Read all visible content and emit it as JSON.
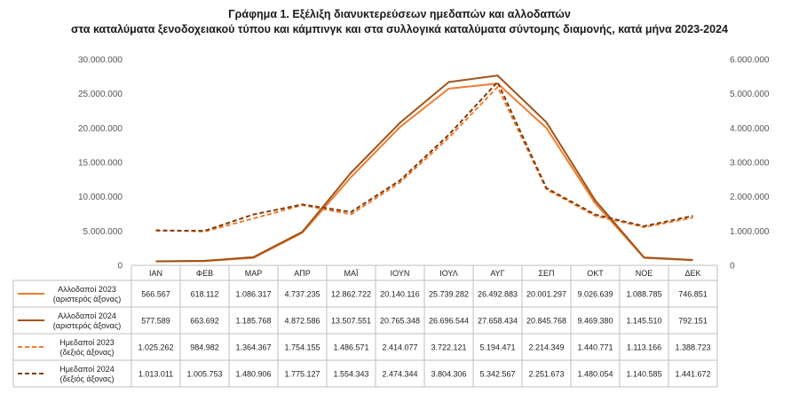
{
  "chart_data": {
    "type": "line",
    "title": "Γράφημα 1. Εξέλιξη διανυκτερεύσεων ημεδαπών και αλλοδαπών",
    "subtitle": "στα καταλύματα ξενοδοχειακού τύπου και κάμπινγκ και στα συλλογικά καταλύματα σύντομης διαμονής, κατά μήνα 2023-2024",
    "categories": [
      "ΙΑΝ",
      "ΦΕΒ",
      "ΜΑΡ",
      "ΑΠΡ",
      "ΜΑΪ",
      "ΙΟΥΝ",
      "ΙΟΥΛ",
      "ΑΥΓ",
      "ΣΕΠ",
      "ΟΚΤ",
      "ΝΟΕ",
      "ΔΕΚ"
    ],
    "y_left": {
      "lim": [
        0,
        30000000
      ],
      "ticks": [
        "0",
        "5.000.000",
        "10.000.000",
        "15.000.000",
        "20.000.000",
        "25.000.000",
        "30.000.000"
      ]
    },
    "y_right": {
      "lim": [
        0,
        6000000
      ],
      "ticks": [
        "0",
        "1.000.000",
        "2.000.000",
        "3.000.000",
        "4.000.000",
        "5.000.000",
        "6.000.000"
      ]
    },
    "grid": false,
    "legend": "table-left",
    "series": [
      {
        "name": "Αλλοδαποί 2023",
        "axis_note": "(αριστερός άξονας)",
        "axis": "left",
        "style": "solid",
        "color": "#ED7D31",
        "values": [
          566567,
          618112,
          1086317,
          4737235,
          12862722,
          20140116,
          25739282,
          26492883,
          20001297,
          9026639,
          1088785,
          746851
        ],
        "labels": [
          "566.567",
          "618.112",
          "1.086.317",
          "4.737.235",
          "12.862.722",
          "20.140.116",
          "25.739.282",
          "26.492.883",
          "20.001.297",
          "9.026.639",
          "1.088.785",
          "746.851"
        ]
      },
      {
        "name": "Αλλοδαποί 2024",
        "axis_note": "(αριστερός άξονας)",
        "axis": "left",
        "style": "solid",
        "color": "#A0541A",
        "values": [
          577589,
          663692,
          1185768,
          4872586,
          13507551,
          20765348,
          26696544,
          27658434,
          20845768,
          9469380,
          1145510,
          792151
        ],
        "labels": [
          "577.589",
          "663.692",
          "1.185.768",
          "4.872.586",
          "13.507.551",
          "20.765.348",
          "26.696.544",
          "27.658.434",
          "20.845.768",
          "9.469.380",
          "1.145.510",
          "792.151"
        ]
      },
      {
        "name": "Ημεδαποί 2023",
        "axis_note": "(δεξιός άξονας)",
        "axis": "right",
        "style": "dashed",
        "color": "#ED7D31",
        "values": [
          1025262,
          984982,
          1364367,
          1754155,
          1486571,
          2414077,
          3722121,
          5194471,
          2214349,
          1440771,
          1113166,
          1388723
        ],
        "labels": [
          "1.025.262",
          "984.982",
          "1.364.367",
          "1.754.155",
          "1.486.571",
          "2.414.077",
          "3.722.121",
          "5.194.471",
          "2.214.349",
          "1.440.771",
          "1.113.166",
          "1.388.723"
        ]
      },
      {
        "name": "Ημεδαποί 2024",
        "axis_note": "(δεξιός άξονας)",
        "axis": "right",
        "style": "dashed",
        "color": "#843C0C",
        "values": [
          1013011,
          1005753,
          1480906,
          1775127,
          1554343,
          2474344,
          3804306,
          5342567,
          2251673,
          1480054,
          1140585,
          1441672
        ],
        "labels": [
          "1.013.011",
          "1.005.753",
          "1.480.906",
          "1.775.127",
          "1.554.343",
          "2.474.344",
          "3.804.306",
          "5.342.567",
          "2.251.673",
          "1.480.054",
          "1.140.585",
          "1.441.672"
        ]
      }
    ]
  }
}
